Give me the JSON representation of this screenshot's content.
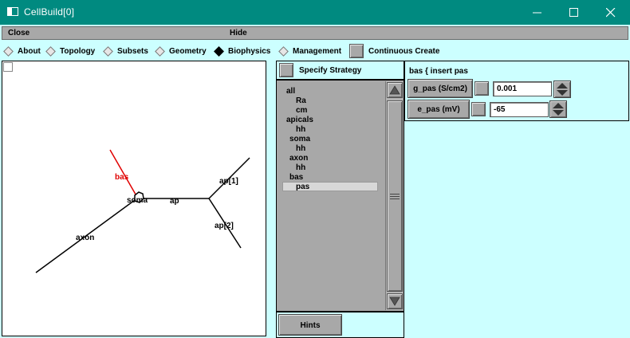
{
  "window": {
    "title": "CellBuild[0]"
  },
  "menu": {
    "close": "Close",
    "hide": "Hide"
  },
  "toolbar": {
    "tabs": [
      {
        "label": "About",
        "selected": false
      },
      {
        "label": "Topology",
        "selected": false
      },
      {
        "label": "Subsets",
        "selected": false
      },
      {
        "label": "Geometry",
        "selected": false
      },
      {
        "label": "Biophysics",
        "selected": true
      },
      {
        "label": "Management",
        "selected": false
      }
    ],
    "continuous_create": "Continuous Create"
  },
  "shape": {
    "labels": {
      "bas": "bas",
      "soma": "soma",
      "ap": "ap",
      "ap1": "ap[1]",
      "ap2": "ap[2]",
      "axon": "axon"
    },
    "colors": {
      "selected_section": "#e00000",
      "section": "#000000"
    }
  },
  "strategy": {
    "button_label": "Specify Strategy",
    "items": [
      "all",
      "Ra",
      "cm",
      "apicals",
      "hh",
      "soma",
      "hh",
      "axon",
      "hh",
      "bas",
      "pas"
    ],
    "selected_index": 10,
    "hints_label": "Hints"
  },
  "params": {
    "heading": "bas { insert pas",
    "rows": [
      {
        "label": "g_pas (S/cm2)",
        "value": "0.001"
      },
      {
        "label": "e_pas (mV)",
        "value": "-65"
      }
    ]
  },
  "colors": {
    "titlebar": "#008a80",
    "background": "#ccffff",
    "panel_gray": "#a8a8a8"
  }
}
